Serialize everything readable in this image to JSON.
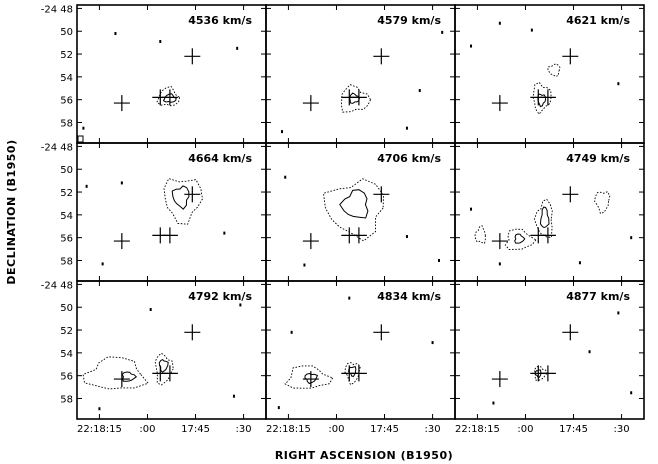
{
  "figure": {
    "ylabel": "DECLINATION (B1950)",
    "xlabel": "RIGHT ASCENSION (B1950)"
  },
  "axes": {
    "dec_ticks": [
      {
        "value": 48,
        "label": "-24 48",
        "major": true
      },
      {
        "value": 50,
        "label": "50",
        "major": false
      },
      {
        "value": 52,
        "label": "52",
        "major": false
      },
      {
        "value": 54,
        "label": "54",
        "major": false
      },
      {
        "value": 56,
        "label": "56",
        "major": false
      },
      {
        "value": 58,
        "label": "58",
        "major": false
      }
    ],
    "ra_ticks": [
      {
        "value": 15,
        "label": "22:18:15"
      },
      {
        "value": 0,
        "label": ":00"
      },
      {
        "value": -15,
        "label": "17:45"
      },
      {
        "value": -30,
        "label": ":30"
      }
    ]
  },
  "chart_data": {
    "type": "contour-map-grid",
    "xlabel": "RIGHT ASCENSION (B1950)",
    "ylabel": "DECLINATION (B1950)",
    "x_units": "RA seconds offset from 22:18:00",
    "y_units": "Dec arcmin below -24 48",
    "xlim": [
      22,
      -37
    ],
    "ylim": [
      47.7,
      59.8
    ],
    "markers": [
      {
        "ra": -14,
        "dec": 52.2
      },
      {
        "ra": 8,
        "dec": 56.3
      },
      {
        "ra": -4,
        "dec": 55.8
      },
      {
        "ra": -7,
        "dec": 55.8
      }
    ],
    "channels": [
      {
        "velocity": "4536",
        "unit": "km/s",
        "solid": [
          {
            "ra": -7,
            "dec": 55.9,
            "rx": 1.8,
            "ry": 0.35
          }
        ],
        "dotted": [
          {
            "ra": -6.5,
            "dec": 55.8,
            "rx": 3.2,
            "ry": 0.8
          }
        ],
        "specks": [
          {
            "ra": 10,
            "dec": 50.2
          },
          {
            "ra": -28,
            "dec": 51.5
          },
          {
            "ra": -4,
            "dec": 50.9
          },
          {
            "ra": 20,
            "dec": 58.5
          }
        ]
      },
      {
        "velocity": "4579",
        "unit": "km/s",
        "solid": [
          {
            "ra": -5.5,
            "dec": 55.9,
            "rx": 1.5,
            "ry": 0.4
          }
        ],
        "dotted": [
          {
            "ra": -5.5,
            "dec": 56,
            "rx": 4.5,
            "ry": 1.1
          }
        ],
        "specks": [
          {
            "ra": -33,
            "dec": 50.1
          },
          {
            "ra": 17,
            "dec": 58.8
          },
          {
            "ra": -22,
            "dec": 58.5
          },
          {
            "ra": -26,
            "dec": 55.2
          }
        ]
      },
      {
        "velocity": "4621",
        "unit": "km/s",
        "solid": [
          {
            "ra": -5,
            "dec": 56,
            "rx": 1.2,
            "ry": 0.5
          }
        ],
        "dotted": [
          {
            "ra": -5,
            "dec": 55.8,
            "rx": 2.8,
            "ry": 1.2
          },
          {
            "ra": -9,
            "dec": 53.4,
            "rx": 1.8,
            "ry": 0.5
          }
        ],
        "specks": [
          {
            "ra": 17,
            "dec": 51.3
          },
          {
            "ra": 8,
            "dec": 49.3
          },
          {
            "ra": -29,
            "dec": 54.6
          },
          {
            "ra": -2,
            "dec": 49.9
          }
        ]
      },
      {
        "velocity": "4664",
        "unit": "km/s",
        "solid": [
          {
            "ra": -10.5,
            "dec": 52.4,
            "rx": 2.5,
            "ry": 0.9
          }
        ],
        "dotted": [
          {
            "ra": -11,
            "dec": 52.6,
            "rx": 5.8,
            "ry": 1.9
          }
        ],
        "specks": [
          {
            "ra": 19,
            "dec": 51.5
          },
          {
            "ra": 8,
            "dec": 51.2
          },
          {
            "ra": -24,
            "dec": 55.6
          },
          {
            "ra": 14,
            "dec": 58.3
          }
        ]
      },
      {
        "velocity": "4706",
        "unit": "km/s",
        "solid": [
          {
            "ra": -6,
            "dec": 53.1,
            "rx": 4,
            "ry": 1.2
          }
        ],
        "dotted": [
          {
            "ra": -6,
            "dec": 53.4,
            "rx": 9,
            "ry": 2.4
          }
        ],
        "specks": [
          {
            "ra": 16,
            "dec": 50.7
          },
          {
            "ra": -22,
            "dec": 55.9
          },
          {
            "ra": 10,
            "dec": 58.4
          },
          {
            "ra": -32,
            "dec": 58
          }
        ]
      },
      {
        "velocity": "4749",
        "unit": "km/s",
        "solid": [
          {
            "ra": -6,
            "dec": 54.3,
            "rx": 1.2,
            "ry": 0.9
          },
          {
            "ra": 2,
            "dec": 56.1,
            "rx": 1.4,
            "ry": 0.4
          }
        ],
        "dotted": [
          {
            "ra": -6,
            "dec": 54.4,
            "rx": 2.6,
            "ry": 1.6
          },
          {
            "ra": 2,
            "dec": 56.2,
            "rx": 4.2,
            "ry": 0.9
          },
          {
            "ra": -24,
            "dec": 52.8,
            "rx": 2.2,
            "ry": 0.9
          },
          {
            "ra": 14,
            "dec": 55.8,
            "rx": 1.6,
            "ry": 0.7
          }
        ],
        "specks": [
          {
            "ra": 17,
            "dec": 53.5
          },
          {
            "ra": -17,
            "dec": 58.2
          },
          {
            "ra": 8,
            "dec": 58.3
          },
          {
            "ra": -33,
            "dec": 56
          }
        ]
      },
      {
        "velocity": "4792",
        "unit": "km/s",
        "solid": [
          {
            "ra": 6,
            "dec": 56.1,
            "rx": 2,
            "ry": 0.4
          },
          {
            "ra": -5,
            "dec": 55.1,
            "rx": 1.3,
            "ry": 0.5
          }
        ],
        "dotted": [
          {
            "ra": 10,
            "dec": 55.9,
            "rx": 9,
            "ry": 1.4
          },
          {
            "ra": -5,
            "dec": 55.4,
            "rx": 2.6,
            "ry": 1.3
          }
        ],
        "specks": [
          {
            "ra": 15,
            "dec": 58.9
          },
          {
            "ra": -1,
            "dec": 50.2
          },
          {
            "ra": -27,
            "dec": 57.8
          },
          {
            "ra": -29,
            "dec": 49.8
          }
        ]
      },
      {
        "velocity": "4834",
        "unit": "km/s",
        "solid": [
          {
            "ra": 8,
            "dec": 56.2,
            "rx": 1.8,
            "ry": 0.4
          },
          {
            "ra": -5,
            "dec": 55.6,
            "rx": 1.1,
            "ry": 0.4
          }
        ],
        "dotted": [
          {
            "ra": 9,
            "dec": 56.2,
            "rx": 6.5,
            "ry": 1
          },
          {
            "ra": -5,
            "dec": 55.7,
            "rx": 2.2,
            "ry": 0.9
          }
        ],
        "specks": [
          {
            "ra": 14,
            "dec": 52.2
          },
          {
            "ra": -30,
            "dec": 53.1
          },
          {
            "ra": -4,
            "dec": 49.2
          },
          {
            "ra": 18,
            "dec": 58.8
          }
        ]
      },
      {
        "velocity": "4877",
        "unit": "km/s",
        "solid": [
          {
            "ra": -4,
            "dec": 55.8,
            "rx": 0.9,
            "ry": 0.3
          }
        ],
        "dotted": [
          {
            "ra": -4.5,
            "dec": 55.8,
            "rx": 1.8,
            "ry": 0.6
          }
        ],
        "specks": [
          {
            "ra": -29,
            "dec": 50.5
          },
          {
            "ra": -20,
            "dec": 53.9
          },
          {
            "ra": 10,
            "dec": 58.4
          },
          {
            "ra": -33,
            "dec": 57.5
          }
        ]
      }
    ]
  }
}
